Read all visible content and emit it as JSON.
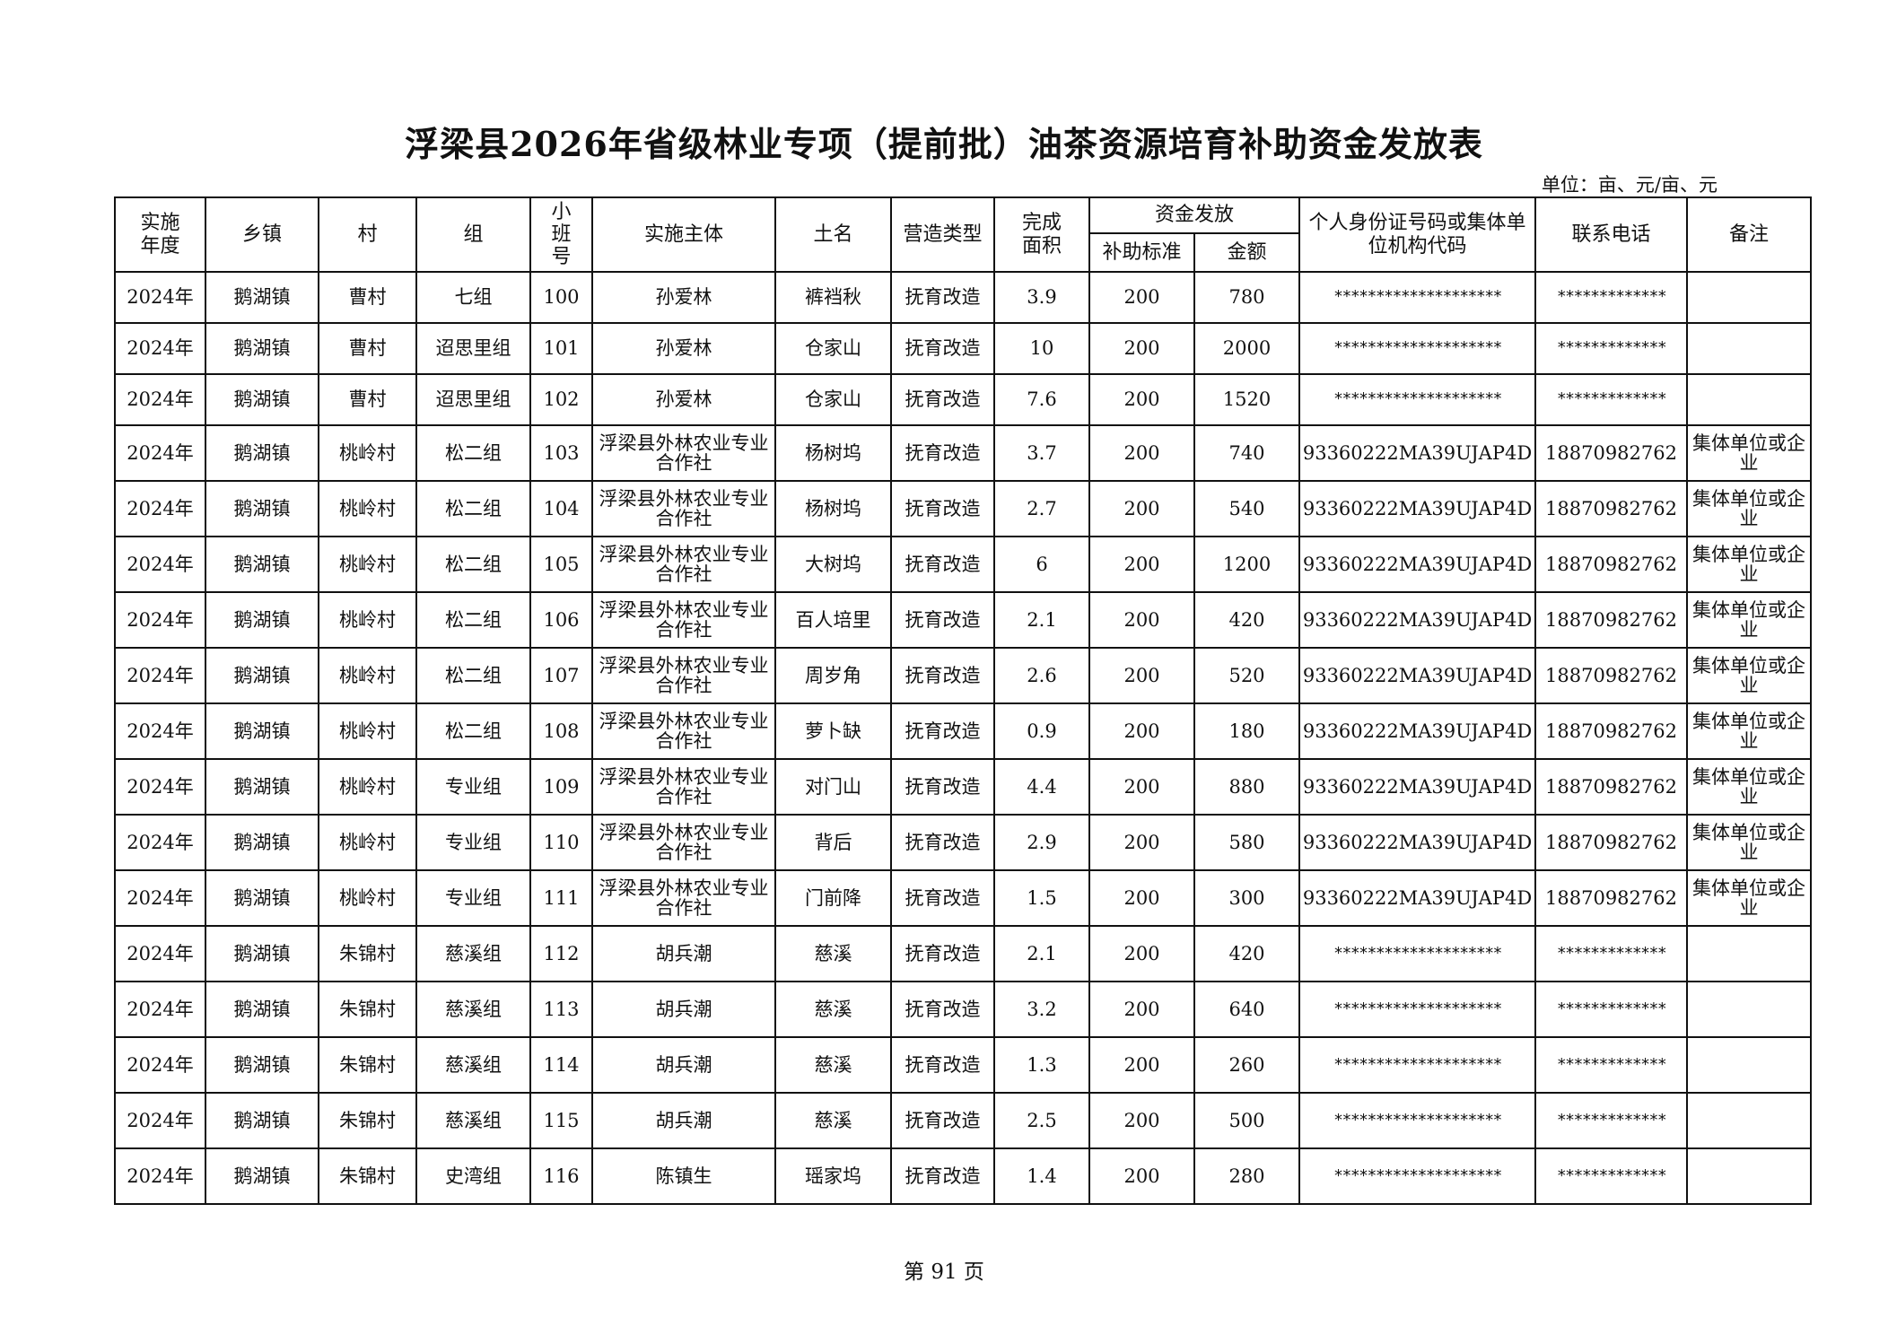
{
  "title": "浮梁县2026年省级林业专项（提前批）油茶资源培育补助资金发放表",
  "unit": "单位：亩、元/亩、元",
  "headers": {
    "year": "实施年度",
    "town": "乡镇",
    "village": "村",
    "group": "组",
    "plot": "小班号",
    "entity": "实施主体",
    "place": "土名",
    "type": "营造类型",
    "area": "完成面积",
    "funding": "资金发放",
    "standard": "补助标准",
    "amount": "金额",
    "id": "个人身份证号码或集体单位机构代码",
    "phone": "联系电话",
    "note": "备注"
  },
  "rows": [
    [
      "2024年",
      "鹅湖镇",
      "曹村",
      "七组",
      "100",
      "孙爱林",
      "裤裆秋",
      "抚育改造",
      "3.9",
      "200",
      "780",
      "********************",
      "*************",
      ""
    ],
    [
      "2024年",
      "鹅湖镇",
      "曹村",
      "迢思里组",
      "101",
      "孙爱林",
      "仓家山",
      "抚育改造",
      "10",
      "200",
      "2000",
      "********************",
      "*************",
      ""
    ],
    [
      "2024年",
      "鹅湖镇",
      "曹村",
      "迢思里组",
      "102",
      "孙爱林",
      "仓家山",
      "抚育改造",
      "7.6",
      "200",
      "1520",
      "********************",
      "*************",
      ""
    ],
    [
      "2024年",
      "鹅湖镇",
      "桃岭村",
      "松二组",
      "103",
      "浮梁县外林农业专业合作社",
      "杨树坞",
      "抚育改造",
      "3.7",
      "200",
      "740",
      "93360222MA39UJAP4D",
      "18870982762",
      "集体单位或企业"
    ],
    [
      "2024年",
      "鹅湖镇",
      "桃岭村",
      "松二组",
      "104",
      "浮梁县外林农业专业合作社",
      "杨树坞",
      "抚育改造",
      "2.7",
      "200",
      "540",
      "93360222MA39UJAP4D",
      "18870982762",
      "集体单位或企业"
    ],
    [
      "2024年",
      "鹅湖镇",
      "桃岭村",
      "松二组",
      "105",
      "浮梁县外林农业专业合作社",
      "大树坞",
      "抚育改造",
      "6",
      "200",
      "1200",
      "93360222MA39UJAP4D",
      "18870982762",
      "集体单位或企业"
    ],
    [
      "2024年",
      "鹅湖镇",
      "桃岭村",
      "松二组",
      "106",
      "浮梁县外林农业专业合作社",
      "百人培里",
      "抚育改造",
      "2.1",
      "200",
      "420",
      "93360222MA39UJAP4D",
      "18870982762",
      "集体单位或企业"
    ],
    [
      "2024年",
      "鹅湖镇",
      "桃岭村",
      "松二组",
      "107",
      "浮梁县外林农业专业合作社",
      "周岁角",
      "抚育改造",
      "2.6",
      "200",
      "520",
      "93360222MA39UJAP4D",
      "18870982762",
      "集体单位或企业"
    ],
    [
      "2024年",
      "鹅湖镇",
      "桃岭村",
      "松二组",
      "108",
      "浮梁县外林农业专业合作社",
      "萝卜缺",
      "抚育改造",
      "0.9",
      "200",
      "180",
      "93360222MA39UJAP4D",
      "18870982762",
      "集体单位或企业"
    ],
    [
      "2024年",
      "鹅湖镇",
      "桃岭村",
      "专业组",
      "109",
      "浮梁县外林农业专业合作社",
      "对门山",
      "抚育改造",
      "4.4",
      "200",
      "880",
      "93360222MA39UJAP4D",
      "18870982762",
      "集体单位或企业"
    ],
    [
      "2024年",
      "鹅湖镇",
      "桃岭村",
      "专业组",
      "110",
      "浮梁县外林农业专业合作社",
      "背后",
      "抚育改造",
      "2.9",
      "200",
      "580",
      "93360222MA39UJAP4D",
      "18870982762",
      "集体单位或企业"
    ],
    [
      "2024年",
      "鹅湖镇",
      "桃岭村",
      "专业组",
      "111",
      "浮梁县外林农业专业合作社",
      "门前降",
      "抚育改造",
      "1.5",
      "200",
      "300",
      "93360222MA39UJAP4D",
      "18870982762",
      "集体单位或企业"
    ],
    [
      "2024年",
      "鹅湖镇",
      "朱锦村",
      "慈溪组",
      "112",
      "胡兵潮",
      "慈溪",
      "抚育改造",
      "2.1",
      "200",
      "420",
      "********************",
      "*************",
      ""
    ],
    [
      "2024年",
      "鹅湖镇",
      "朱锦村",
      "慈溪组",
      "113",
      "胡兵潮",
      "慈溪",
      "抚育改造",
      "3.2",
      "200",
      "640",
      "********************",
      "*************",
      ""
    ],
    [
      "2024年",
      "鹅湖镇",
      "朱锦村",
      "慈溪组",
      "114",
      "胡兵潮",
      "慈溪",
      "抚育改造",
      "1.3",
      "200",
      "260",
      "********************",
      "*************",
      ""
    ],
    [
      "2024年",
      "鹅湖镇",
      "朱锦村",
      "慈溪组",
      "115",
      "胡兵潮",
      "慈溪",
      "抚育改造",
      "2.5",
      "200",
      "500",
      "********************",
      "*************",
      ""
    ],
    [
      "2024年",
      "鹅湖镇",
      "朱锦村",
      "史湾组",
      "116",
      "陈镇生",
      "瑶家坞",
      "抚育改造",
      "1.4",
      "200",
      "280",
      "********************",
      "*************",
      ""
    ]
  ],
  "footer": "第 91 页"
}
